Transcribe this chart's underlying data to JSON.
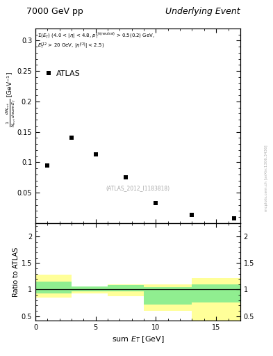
{
  "title_left": "7000 GeV pp",
  "title_right": "Underlying Event",
  "annotation": "(ATLAS_2012_I1183818)",
  "legend_label": "ATLAS",
  "xlabel": "sum E_{T} [GeV]",
  "ylabel_line1": "1",
  "ylabel_line2": "dN_{evt}",
  "ylabel_ratio": "Ratio to ATLAS",
  "data_x": [
    1.0,
    3.0,
    5.0,
    7.5,
    10.0,
    13.0,
    16.5
  ],
  "data_y": [
    0.095,
    0.14,
    0.113,
    0.075,
    0.033,
    0.013,
    0.008
  ],
  "ylim_main": [
    0.0,
    0.32
  ],
  "xlim": [
    0.0,
    17.0
  ],
  "ylim_ratio": [
    0.42,
    2.25
  ],
  "yticks_main": [
    0.05,
    0.1,
    0.15,
    0.2,
    0.25,
    0.3
  ],
  "ytick_labels_main": [
    "0.05",
    "0.1",
    "0.15",
    "0.2",
    "0.25",
    "0.3"
  ],
  "xticks": [
    0,
    5,
    10,
    15
  ],
  "xtick_labels": [
    "0",
    "5",
    "10",
    "15"
  ],
  "yticks_ratio": [
    0.5,
    1.0,
    1.5,
    2.0
  ],
  "ytick_labels_ratio": [
    "0.5",
    "1",
    "1.5",
    "2"
  ],
  "green_bands": [
    {
      "xmin": 0,
      "xmax": 3,
      "ymin": 0.93,
      "ymax": 1.15
    },
    {
      "xmin": 3,
      "xmax": 6,
      "ymin": 0.97,
      "ymax": 1.06
    },
    {
      "xmin": 6,
      "xmax": 9,
      "ymin": 0.97,
      "ymax": 1.08
    },
    {
      "xmin": 9,
      "xmax": 13,
      "ymin": 0.72,
      "ymax": 1.05
    },
    {
      "xmin": 13,
      "xmax": 17,
      "ymin": 0.76,
      "ymax": 1.1
    }
  ],
  "yellow_bands": [
    {
      "xmin": 0,
      "xmax": 3,
      "ymin": 0.85,
      "ymax": 1.28
    },
    {
      "xmin": 3,
      "xmax": 6,
      "ymin": 0.93,
      "ymax": 1.06
    },
    {
      "xmin": 6,
      "xmax": 9,
      "ymin": 0.88,
      "ymax": 1.1
    },
    {
      "xmin": 9,
      "xmax": 13,
      "ymin": 0.6,
      "ymax": 1.1
    },
    {
      "xmin": 13,
      "xmax": 17,
      "ymin": 0.42,
      "ymax": 1.22
    }
  ],
  "background_color": "#ffffff",
  "green_color": "#90ee90",
  "yellow_color": "#ffff99",
  "marker_color": "#000000",
  "marker_size": 4,
  "main_height_ratio": 2.0,
  "ratio_height_ratio": 1.0
}
